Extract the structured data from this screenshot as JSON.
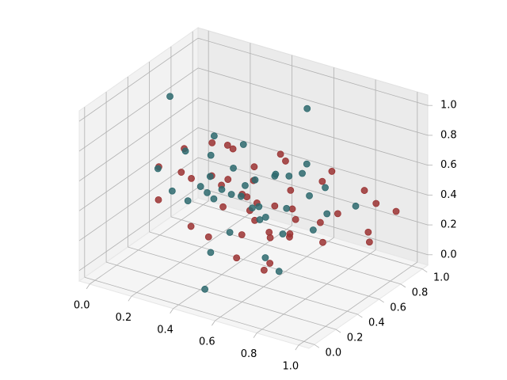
{
  "chart_data": {
    "type": "scatter3d",
    "xlim": [
      -0.05,
      1.05
    ],
    "ylim": [
      -0.05,
      1.05
    ],
    "zlim": [
      -0.07,
      1.07
    ],
    "xticks": [
      {
        "value": 0,
        "label": "0.0"
      },
      {
        "value": 0.2,
        "label": "0.2"
      },
      {
        "value": 0.4,
        "label": "0.4"
      },
      {
        "value": 0.6,
        "label": "0.6"
      },
      {
        "value": 0.8,
        "label": "0.8"
      },
      {
        "value": 1,
        "label": "1.0"
      }
    ],
    "yticks": [
      {
        "value": 0,
        "label": "0.0"
      },
      {
        "value": 0.2,
        "label": "0.2"
      },
      {
        "value": 0.4,
        "label": "0.4"
      },
      {
        "value": 0.6,
        "label": "0.6"
      },
      {
        "value": 0.8,
        "label": "0.8"
      },
      {
        "value": 1,
        "label": "1.0"
      }
    ],
    "zticks": [
      {
        "value": 0,
        "label": "0.0"
      },
      {
        "value": 0.2,
        "label": "0.2"
      },
      {
        "value": 0.4,
        "label": "0.4"
      },
      {
        "value": 0.6,
        "label": "0.6"
      },
      {
        "value": 0.8,
        "label": "0.8"
      },
      {
        "value": 1,
        "label": "1.0"
      }
    ],
    "grid": true,
    "series": [
      {
        "color": "#9b3333",
        "x": [
          0.15,
          0.22,
          0.3,
          0.35,
          0.42,
          0.5,
          0.55,
          0.6,
          0.65,
          0.7,
          0.2,
          0.28,
          0.38,
          0.45,
          0.52,
          0.58,
          0.66,
          0.72,
          0.8,
          0.85,
          0.25,
          0.33,
          0.4,
          0.48,
          0.56,
          0.62,
          0.7,
          0.78,
          0.88,
          0.9,
          0.18,
          0.3,
          0.44,
          0.5,
          0.6,
          0.68,
          0.75,
          0.82,
          0.92,
          0.95,
          0.35,
          0.47,
          0.55,
          0.63,
          0.73
        ],
        "y": [
          0.3,
          0.4,
          0.5,
          0.6,
          0.55,
          0.5,
          0.7,
          0.65,
          0.6,
          0.75,
          0.2,
          0.35,
          0.45,
          0.3,
          0.4,
          0.5,
          0.55,
          0.8,
          0.7,
          0.85,
          0.6,
          0.25,
          0.7,
          0.55,
          0.35,
          0.3,
          0.45,
          0.6,
          0.9,
          0.8,
          0.45,
          0.65,
          0.2,
          0.75,
          0.15,
          0.25,
          0.35,
          0.5,
          0.75,
          0.95,
          0.55,
          0.45,
          0.6,
          0.4,
          0.2
        ],
        "z": [
          0.6,
          0.7,
          0.5,
          0.65,
          0.4,
          0.55,
          0.6,
          0.45,
          0.3,
          0.5,
          0.45,
          0.55,
          0.35,
          0.6,
          0.5,
          0.2,
          0.4,
          0.55,
          0.35,
          0.45,
          0.65,
          0.3,
          0.5,
          0.25,
          0.45,
          0.55,
          0.3,
          0.2,
          0.35,
          0.15,
          0.5,
          0.4,
          0.3,
          0.6,
          0.25,
          0.15,
          0.35,
          0.4,
          0.25,
          0.3,
          0.7,
          0.2,
          0.35,
          0.1,
          0.45
        ]
      },
      {
        "color": "#2e6a6e",
        "x": [
          0.12,
          0.2,
          0.27,
          0.33,
          0.4,
          0.46,
          0.52,
          0.58,
          0.63,
          0.69,
          0.24,
          0.31,
          0.37,
          0.43,
          0.49,
          0.55,
          0.61,
          0.67,
          0.74,
          0.8,
          0.16,
          0.35,
          0.42,
          0.5,
          0.57,
          0.64,
          0.71,
          0.3,
          0.45,
          0.6,
          0.76,
          0.86,
          0.26,
          0.4,
          0.53,
          0.66,
          0.5,
          0.1,
          0.7,
          0.55
        ],
        "y": [
          0.35,
          0.45,
          0.55,
          0.4,
          0.6,
          0.5,
          0.45,
          0.55,
          0.7,
          0.65,
          0.25,
          0.5,
          0.35,
          0.65,
          0.3,
          0.6,
          0.4,
          0.5,
          0.7,
          0.6,
          0.55,
          0.3,
          0.45,
          0.55,
          0.25,
          0.5,
          0.4,
          0.7,
          0.2,
          0.8,
          0.55,
          0.75,
          0.6,
          0.4,
          0.5,
          0.3,
          0.05,
          0.5,
          0.35,
          0.9
        ],
        "z": [
          0.55,
          0.65,
          0.6,
          0.45,
          0.7,
          0.5,
          0.4,
          0.6,
          0.55,
          0.45,
          0.5,
          0.35,
          0.6,
          0.45,
          0.3,
          0.55,
          0.4,
          0.65,
          0.5,
          0.4,
          0.25,
          0.55,
          0.45,
          0.35,
          0.6,
          0.25,
          0.5,
          0.45,
          0.2,
          0.55,
          0.3,
          0.4,
          0.7,
          0.5,
          0.3,
          0.2,
          0.05,
          0.95,
          0.1,
          0.85
        ]
      }
    ]
  }
}
